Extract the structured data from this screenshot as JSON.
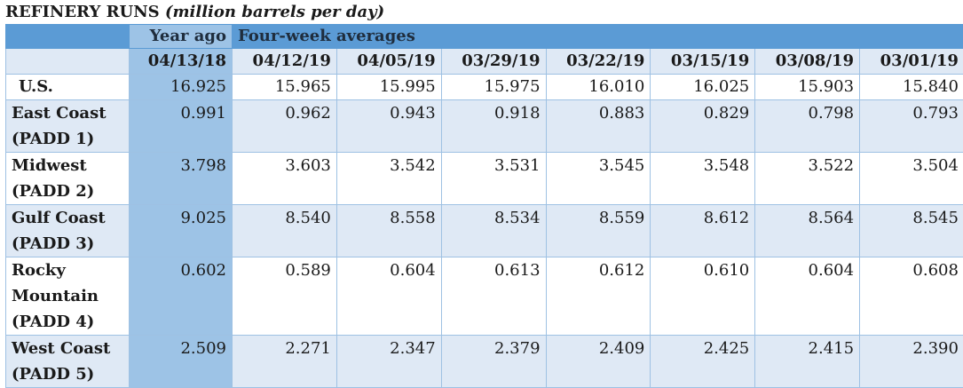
{
  "title": {
    "main": "REFINERY RUNS",
    "units": "(million barrels per day)"
  },
  "header": {
    "group_year_ago": "Year ago",
    "group_four_week": "Four-week averages",
    "dates": [
      "04/13/18",
      "04/12/19",
      "04/05/19",
      "03/29/19",
      "03/22/19",
      "03/15/19",
      "03/08/19",
      "03/01/19"
    ]
  },
  "rows": [
    {
      "label": "U.S.",
      "values": [
        "16.925",
        "15.965",
        "15.995",
        "15.975",
        "16.010",
        "16.025",
        "15.903",
        "15.840"
      ]
    },
    {
      "label": "East Coast (PADD 1)",
      "values": [
        "0.991",
        "0.962",
        "0.943",
        "0.918",
        "0.883",
        "0.829",
        "0.798",
        "0.793"
      ]
    },
    {
      "label": "Midwest (PADD 2)",
      "values": [
        "3.798",
        "3.603",
        "3.542",
        "3.531",
        "3.545",
        "3.548",
        "3.522",
        "3.504"
      ]
    },
    {
      "label": "Gulf Coast (PADD 3)",
      "values": [
        "9.025",
        "8.540",
        "8.558",
        "8.534",
        "8.559",
        "8.612",
        "8.564",
        "8.545"
      ]
    },
    {
      "label": "Rocky Mountain (PADD 4)",
      "values": [
        "0.602",
        "0.589",
        "0.604",
        "0.613",
        "0.612",
        "0.610",
        "0.604",
        "0.608"
      ]
    },
    {
      "label": "West Coast (PADD 5)",
      "values": [
        "2.509",
        "2.271",
        "2.347",
        "2.379",
        "2.409",
        "2.425",
        "2.415",
        "2.390"
      ]
    }
  ],
  "colors": {
    "header_blue": "#5b9bd5",
    "year_ago_column": "#9dc3e6",
    "band_light": "#dfe9f5",
    "grid": "#9ec1e3"
  }
}
